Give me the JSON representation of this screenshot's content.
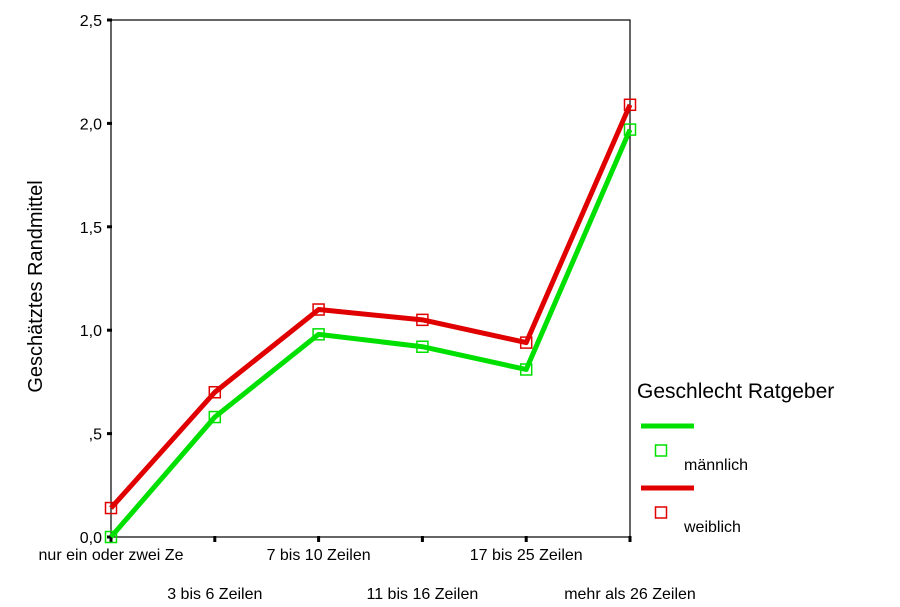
{
  "chart_data": {
    "type": "line",
    "title": "",
    "xlabel": "",
    "ylabel": "Geschätztes Randmittel",
    "ylim": [
      0,
      2.5
    ],
    "yticks": [
      "0,0",
      ",5",
      "1,0",
      "1,5",
      "2,0",
      "2,5"
    ],
    "categories": [
      "nur ein oder zwei Ze",
      "3 bis 6 Zeilen",
      "7 bis 10 Zeilen",
      "11 bis 16 Zeilen",
      "17 bis 25 Zeilen",
      "mehr als 26 Zeilen"
    ],
    "legend_title": "Geschlecht Ratgeber",
    "legend_position": "right",
    "grid": false,
    "series": [
      {
        "name": "männlich",
        "color": "#00e000",
        "values": [
          0.0,
          0.58,
          0.98,
          0.92,
          0.81,
          1.97
        ]
      },
      {
        "name": "weiblich",
        "color": "#e00000",
        "values": [
          0.14,
          0.7,
          1.1,
          1.05,
          0.94,
          2.09
        ]
      }
    ]
  }
}
